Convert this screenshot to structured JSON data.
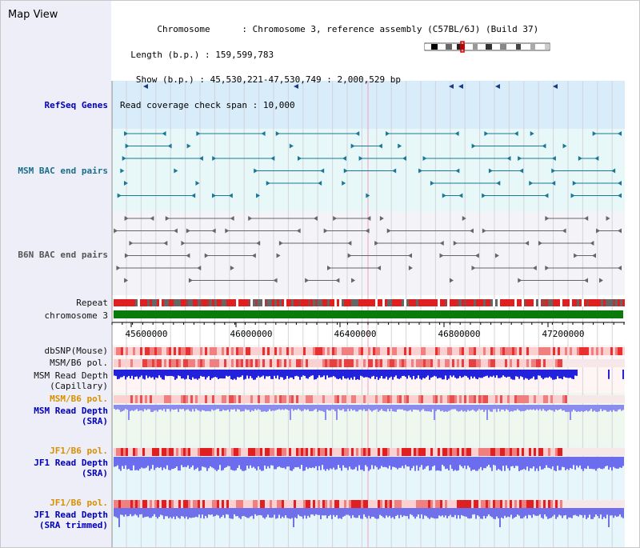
{
  "title": "Map View",
  "info": {
    "chromosome_key": "Chromosome",
    "chromosome_val": "Chromosome 3, reference assembly (C57BL/6J) (Build 37)",
    "length_key": "Length (b.p.)",
    "length_val": "159,599,783",
    "show_key": "Show (b.p.)",
    "show_val": "45,530,221-47,530,749 : 2,000,529 bp",
    "coverage_key": "Read coverage check span",
    "coverage_val": "10,000"
  },
  "tracks": {
    "refseq": "RefSeq Genes",
    "msm_bac": "MSM BAC end pairs",
    "b6n_bac": "B6N BAC end pairs",
    "repeat": "Repeat",
    "chromosome": "chromosome 3",
    "dbsnp": "dbSNP(Mouse)",
    "msm_b6_pol": "MSM/B6 pol.",
    "msm_read_depth": "MSM Read Depth",
    "capillary": "(Capillary)",
    "msm_b6_pol2": "MSM/B6 pol.",
    "msm_read_depth_sra": "MSM Read Depth",
    "sra": "(SRA)",
    "jf1_b6_pol": "JF1/B6 pol.",
    "jf1_read_depth": "JF1 Read Depth",
    "sra2": "(SRA)",
    "jf1_b6_pol2": "JF1/B6 pol.",
    "jf1_read_depth2": "JF1 Read Depth",
    "sra_trimmed": "(SRA trimmed)"
  },
  "axis": {
    "ticks": [
      "45600000",
      "46000000",
      "46400000",
      "46800000",
      "47200000"
    ]
  },
  "colors": {
    "sidebar": "#eeeef8",
    "refseq_bg": "#d8ecfa",
    "msm_bac_bg": "#e8f8f8",
    "b6n_bac_bg": "#f4f4f8",
    "chromosome_green": "#0a7a0a",
    "repeat_red": "#e02020",
    "depth_blue": "#2222dd",
    "depth_light": "#7777ee",
    "label_blue": "#0000b8",
    "label_orange": "#d89000"
  }
}
